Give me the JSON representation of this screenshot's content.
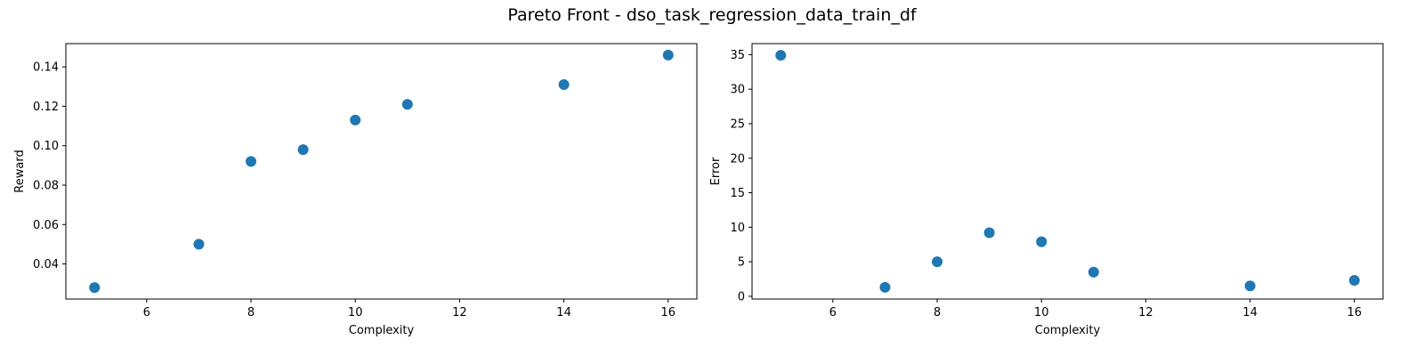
{
  "figure": {
    "suptitle": "Pareto Front - dso_task_regression_data_train_df",
    "marker_color": "#1f77b4"
  },
  "chart_data": [
    {
      "type": "scatter",
      "xlabel": "Complexity",
      "ylabel": "Reward",
      "x": [
        5,
        7,
        8,
        9,
        10,
        11,
        14,
        16
      ],
      "y": [
        0.028,
        0.05,
        0.092,
        0.098,
        0.113,
        0.121,
        0.131,
        0.146
      ],
      "xlim": [
        4.45,
        16.55
      ],
      "ylim": [
        0.0222,
        0.1518
      ],
      "xticks": [
        6,
        8,
        10,
        12,
        14,
        16
      ],
      "yticks": [
        0.04,
        0.06,
        0.08,
        0.1,
        0.12,
        0.14
      ],
      "ytick_labels": [
        "0.04",
        "0.06",
        "0.08",
        "0.10",
        "0.12",
        "0.14"
      ],
      "grid": false
    },
    {
      "type": "scatter",
      "xlabel": "Complexity",
      "ylabel": "Error",
      "x": [
        5,
        7,
        8,
        9,
        10,
        11,
        14,
        16
      ],
      "y": [
        34.9,
        1.3,
        5.0,
        9.2,
        7.9,
        3.5,
        1.5,
        2.3
      ],
      "xlim": [
        4.45,
        16.55
      ],
      "ylim": [
        -0.4,
        36.6
      ],
      "xticks": [
        6,
        8,
        10,
        12,
        14,
        16
      ],
      "yticks": [
        0,
        5,
        10,
        15,
        20,
        25,
        30,
        35
      ],
      "ytick_labels": [
        "0",
        "5",
        "10",
        "15",
        "20",
        "25",
        "30",
        "35"
      ],
      "grid": false
    }
  ]
}
